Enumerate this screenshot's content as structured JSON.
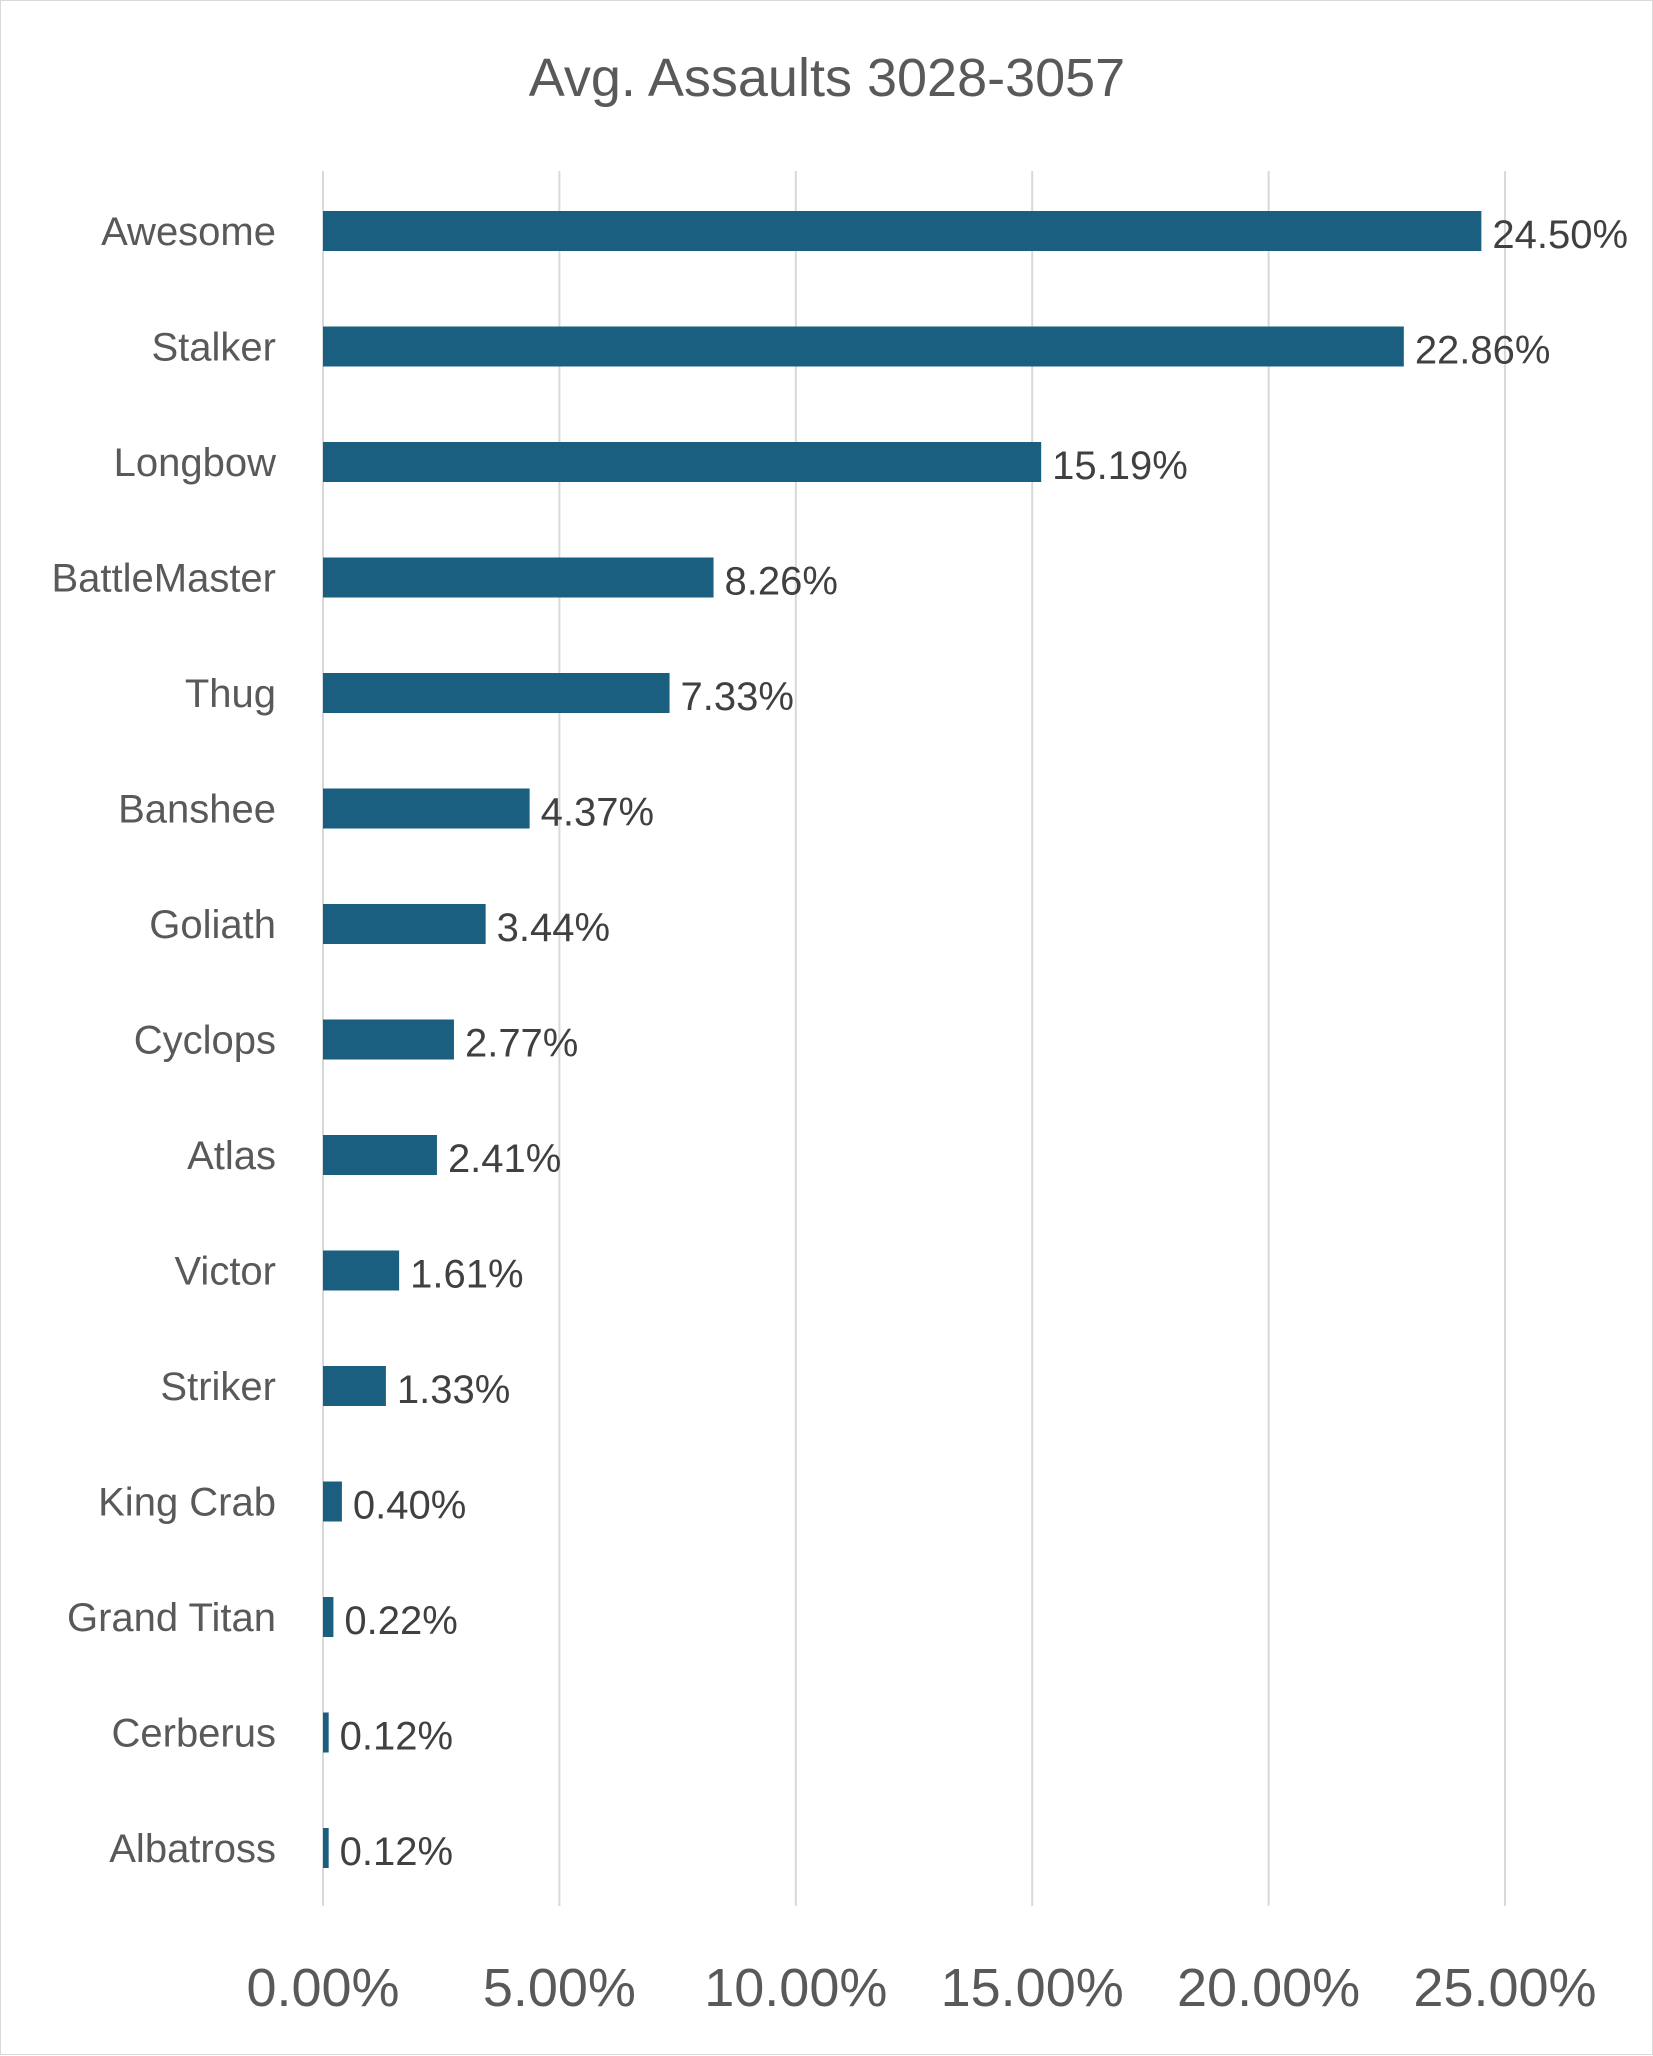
{
  "chart_data": {
    "type": "bar",
    "orientation": "horizontal",
    "title": "Avg. Assaults 3028-3057",
    "xlabel": "",
    "ylabel": "",
    "categories": [
      "Awesome",
      "Stalker",
      "Longbow",
      "BattleMaster",
      "Thug",
      "Banshee",
      "Goliath",
      "Cyclops",
      "Atlas",
      "Victor",
      "Striker",
      "King Crab",
      "Grand Titan",
      "Cerberus",
      "Albatross"
    ],
    "values": [
      24.5,
      22.86,
      15.19,
      8.26,
      7.33,
      4.37,
      3.44,
      2.77,
      2.41,
      1.61,
      1.33,
      0.4,
      0.22,
      0.12,
      0.12
    ],
    "value_labels": [
      "24.50%",
      "22.86%",
      "15.19%",
      "8.26%",
      "7.33%",
      "4.37%",
      "3.44%",
      "2.77%",
      "2.41%",
      "1.61%",
      "1.33%",
      "0.40%",
      "0.22%",
      "0.12%",
      "0.12%"
    ],
    "xlim": [
      0,
      25
    ],
    "x_ticks": [
      0,
      5,
      10,
      15,
      20,
      25
    ],
    "x_tick_labels": [
      "0.00%",
      "5.00%",
      "10.00%",
      "15.00%",
      "20.00%",
      "25.00%"
    ],
    "grid": true,
    "legend": false,
    "bar_color": "#1a5f80",
    "gridline_color": "#d9d9d9"
  }
}
